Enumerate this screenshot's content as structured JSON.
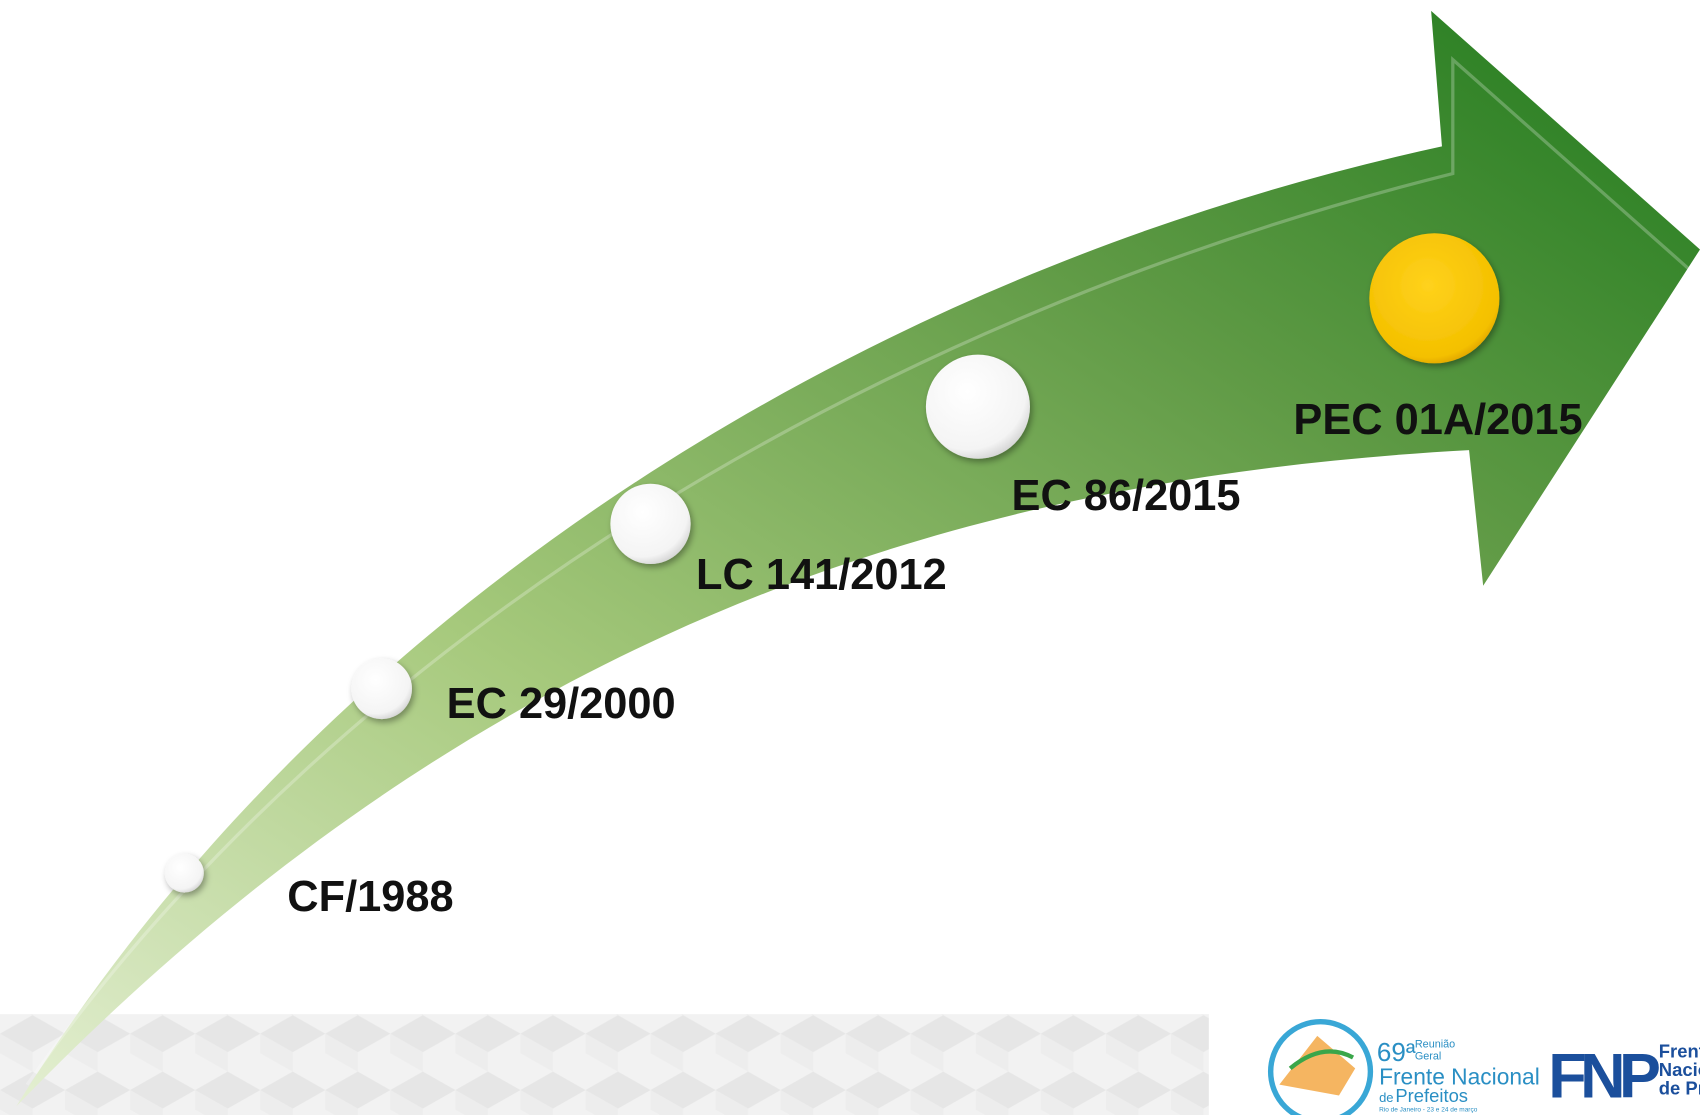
{
  "milestones": [
    "CF/1988",
    "EC 29/2000",
    "LC 141/2012",
    "EC 86/2015",
    "PEC 01A/2015"
  ],
  "event_logo": {
    "edition": "69ª",
    "kind": [
      "Reunião",
      "Geral"
    ],
    "name": [
      "Frente Nacional",
      "de",
      "Prefeitos"
    ],
    "place": "Rio de Janeiro - 23 e 24 de março"
  },
  "org_logo": {
    "acronym": "FNP",
    "name": [
      "Frente",
      "Nacional",
      "de Prefeitos"
    ]
  }
}
